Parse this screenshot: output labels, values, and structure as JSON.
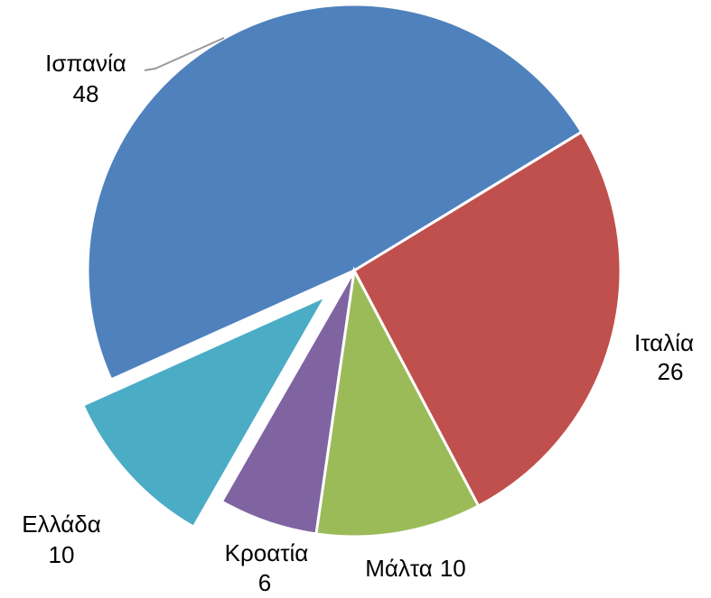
{
  "chart_data": {
    "type": "pie",
    "categories": [
      "Ισπανία",
      "Ιταλία",
      "Μάλτα",
      "Κροατία",
      "Ελλάδα"
    ],
    "values": [
      48,
      26,
      10,
      6,
      10
    ],
    "colors": [
      "#4f81bd",
      "#c0504d",
      "#9bbb59",
      "#8064a2",
      "#4bacc6"
    ]
  }
}
